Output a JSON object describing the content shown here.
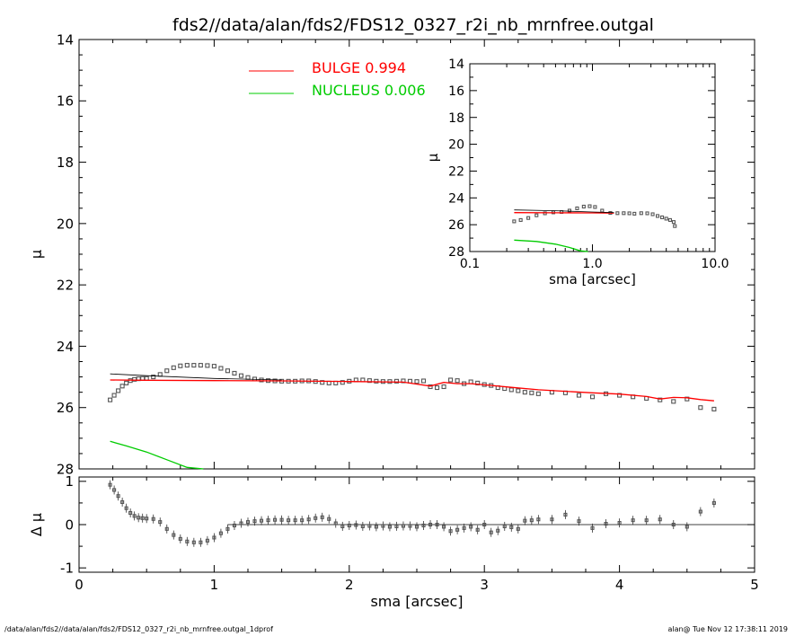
{
  "title": "fds2//data/alan/fds2/FDS12_0327_r2i_nb_mrnfree.outgal",
  "footer": {
    "left": "/data/alan/fds2//data/alan/fds2/FDS12_0327_r2i_nb_mrnfree.outgal_1dprof",
    "right": "alan@  Tue Nov 12 17:38:11 2019"
  },
  "colors": {
    "bulge": "#ff0000",
    "nucleus": "#00cc00",
    "data": "#555555",
    "total": "#000000"
  },
  "chart_data": [
    {
      "id": "main",
      "type": "scatter",
      "xlabel": "",
      "ylabel": "μ",
      "xlim": [
        0,
        5
      ],
      "ylim": [
        28,
        14
      ],
      "y_inverted": true,
      "yticks": [
        14,
        16,
        18,
        20,
        22,
        24,
        26,
        28
      ],
      "ytick_labels": [
        "14",
        "16",
        "18",
        "20",
        "22",
        "24",
        "26",
        "28"
      ],
      "legend": [
        {
          "label": "BULGE  0.994",
          "color": "#ff0000"
        },
        {
          "label": "NUCLEUS  0.006",
          "color": "#00cc00"
        }
      ],
      "series": [
        {
          "name": "data",
          "kind": "points",
          "x": [
            0.23,
            0.26,
            0.29,
            0.32,
            0.35,
            0.38,
            0.41,
            0.44,
            0.47,
            0.5,
            0.55,
            0.6,
            0.65,
            0.7,
            0.75,
            0.8,
            0.85,
            0.9,
            0.95,
            1.0,
            1.05,
            1.1,
            1.15,
            1.2,
            1.25,
            1.3,
            1.35,
            1.4,
            1.45,
            1.5,
            1.55,
            1.6,
            1.65,
            1.7,
            1.75,
            1.8,
            1.85,
            1.9,
            1.95,
            2.0,
            2.05,
            2.1,
            2.15,
            2.2,
            2.25,
            2.3,
            2.35,
            2.4,
            2.45,
            2.5,
            2.55,
            2.6,
            2.65,
            2.7,
            2.75,
            2.8,
            2.85,
            2.9,
            2.95,
            3.0,
            3.05,
            3.1,
            3.15,
            3.2,
            3.25,
            3.3,
            3.35,
            3.4,
            3.5,
            3.6,
            3.7,
            3.8,
            3.9,
            4.0,
            4.1,
            4.2,
            4.3,
            4.4,
            4.5,
            4.6,
            4.7
          ],
          "y": [
            25.75,
            25.6,
            25.45,
            25.3,
            25.2,
            25.12,
            25.08,
            25.06,
            25.05,
            25.05,
            25.0,
            24.92,
            24.8,
            24.7,
            24.64,
            24.62,
            24.62,
            24.62,
            24.63,
            24.65,
            24.72,
            24.8,
            24.88,
            24.96,
            25.02,
            25.07,
            25.1,
            25.12,
            25.13,
            25.14,
            25.14,
            25.14,
            25.13,
            25.13,
            25.15,
            25.18,
            25.2,
            25.2,
            25.18,
            25.14,
            25.1,
            25.1,
            25.12,
            25.14,
            25.15,
            25.15,
            25.14,
            25.13,
            25.14,
            25.15,
            25.13,
            25.32,
            25.35,
            25.32,
            25.1,
            25.12,
            25.22,
            25.16,
            25.2,
            25.25,
            25.28,
            25.35,
            25.38,
            25.42,
            25.45,
            25.5,
            25.52,
            25.55,
            25.5,
            25.52,
            25.6,
            25.65,
            25.55,
            25.6,
            25.65,
            25.7,
            25.75,
            25.8,
            25.72,
            26.0,
            26.05
          ]
        },
        {
          "name": "BULGE",
          "kind": "line",
          "x": [
            0.23,
            0.5,
            1.0,
            1.5,
            2.0,
            2.4,
            2.6,
            2.7,
            2.8,
            2.9,
            3.0,
            3.2,
            3.4,
            3.6,
            3.8,
            4.0,
            4.2,
            4.3,
            4.4,
            4.5,
            4.6,
            4.7
          ],
          "y": [
            25.1,
            25.11,
            25.12,
            25.13,
            25.15,
            25.17,
            25.3,
            25.18,
            25.22,
            25.22,
            25.26,
            25.34,
            25.42,
            25.47,
            25.52,
            25.56,
            25.64,
            25.72,
            25.67,
            25.68,
            25.74,
            25.78
          ]
        },
        {
          "name": "NUCLEUS",
          "kind": "line",
          "x": [
            0.23,
            0.35,
            0.5,
            0.65,
            0.8,
            0.92
          ],
          "y": [
            27.1,
            27.25,
            27.45,
            27.7,
            27.95,
            28.1
          ]
        },
        {
          "name": "total",
          "kind": "line",
          "x": [
            0.23,
            0.5,
            1.0,
            1.5
          ],
          "y": [
            24.9,
            24.96,
            25.05,
            25.1
          ]
        }
      ]
    },
    {
      "id": "residual",
      "type": "scatter",
      "xlabel": "sma [arcsec]",
      "ylabel": "Δ μ",
      "xlim": [
        0,
        5
      ],
      "ylim": [
        -1.1,
        1.1
      ],
      "xticks": [
        0,
        1,
        2,
        3,
        4,
        5
      ],
      "xtick_labels": [
        "0",
        "1",
        "2",
        "3",
        "4",
        "5"
      ],
      "yticks": [
        -1,
        0,
        1
      ],
      "ytick_labels": [
        "-1",
        "0",
        "1"
      ],
      "series": [
        {
          "name": "residuals",
          "kind": "points",
          "x": [
            0.23,
            0.26,
            0.29,
            0.32,
            0.35,
            0.38,
            0.41,
            0.44,
            0.47,
            0.5,
            0.55,
            0.6,
            0.65,
            0.7,
            0.75,
            0.8,
            0.85,
            0.9,
            0.95,
            1.0,
            1.05,
            1.1,
            1.15,
            1.2,
            1.25,
            1.3,
            1.35,
            1.4,
            1.45,
            1.5,
            1.55,
            1.6,
            1.65,
            1.7,
            1.75,
            1.8,
            1.85,
            1.9,
            1.95,
            2.0,
            2.05,
            2.1,
            2.15,
            2.2,
            2.25,
            2.3,
            2.35,
            2.4,
            2.45,
            2.5,
            2.55,
            2.6,
            2.65,
            2.7,
            2.75,
            2.8,
            2.85,
            2.9,
            2.95,
            3.0,
            3.05,
            3.1,
            3.15,
            3.2,
            3.25,
            3.3,
            3.35,
            3.4,
            3.5,
            3.6,
            3.7,
            3.8,
            3.9,
            4.0,
            4.1,
            4.2,
            4.3,
            4.4,
            4.5,
            4.6,
            4.7
          ],
          "y": [
            0.92,
            0.8,
            0.66,
            0.52,
            0.38,
            0.27,
            0.2,
            0.16,
            0.15,
            0.14,
            0.13,
            0.06,
            -0.1,
            -0.24,
            -0.33,
            -0.39,
            -0.41,
            -0.41,
            -0.37,
            -0.3,
            -0.2,
            -0.1,
            -0.02,
            0.03,
            0.06,
            0.08,
            0.09,
            0.1,
            0.11,
            0.11,
            0.1,
            0.1,
            0.1,
            0.12,
            0.15,
            0.17,
            0.13,
            0.03,
            -0.04,
            -0.02,
            -0.01,
            -0.04,
            -0.03,
            -0.05,
            -0.03,
            -0.05,
            -0.04,
            -0.03,
            -0.03,
            -0.05,
            -0.02,
            0.0,
            0.0,
            -0.05,
            -0.15,
            -0.12,
            -0.08,
            -0.05,
            -0.12,
            0.0,
            -0.18,
            -0.14,
            -0.04,
            -0.06,
            -0.1,
            0.09,
            0.1,
            0.12,
            0.12,
            0.23,
            0.08,
            -0.08,
            0.02,
            0.04,
            0.1,
            0.1,
            0.12,
            0.0,
            -0.05,
            0.3,
            0.5
          ]
        }
      ]
    },
    {
      "id": "inset",
      "type": "scatter",
      "xlabel": "sma [arcsec]",
      "ylabel": "μ",
      "xscale": "log",
      "xlim": [
        0.1,
        10.0
      ],
      "ylim": [
        28,
        14
      ],
      "y_inverted": true,
      "xticks": [
        0.1,
        1.0,
        10.0
      ],
      "xtick_labels": [
        "0.1",
        "1.0",
        "10.0"
      ],
      "yticks": [
        14,
        16,
        18,
        20,
        22,
        24,
        26,
        28
      ],
      "ytick_labels": [
        "14",
        "16",
        "18",
        "20",
        "22",
        "24",
        "26",
        "28"
      ],
      "series": [
        {
          "name": "data",
          "kind": "points",
          "x": [
            0.23,
            0.26,
            0.3,
            0.35,
            0.41,
            0.48,
            0.56,
            0.65,
            0.75,
            0.85,
            0.95,
            1.05,
            1.2,
            1.4,
            1.6,
            1.8,
            2.0,
            2.2,
            2.5,
            2.8,
            3.1,
            3.4,
            3.7,
            4.0,
            4.3,
            4.6,
            4.7
          ],
          "y": [
            25.75,
            25.65,
            25.5,
            25.3,
            25.15,
            25.08,
            25.05,
            24.95,
            24.78,
            24.65,
            24.62,
            24.68,
            24.95,
            25.12,
            25.14,
            25.14,
            25.15,
            25.18,
            25.14,
            25.15,
            25.22,
            25.35,
            25.45,
            25.55,
            25.65,
            25.8,
            26.1
          ]
        },
        {
          "name": "BULGE",
          "kind": "line",
          "x": [
            0.23,
            0.5,
            1.0,
            1.5
          ],
          "y": [
            25.1,
            25.11,
            25.12,
            25.13
          ]
        },
        {
          "name": "NUCLEUS",
          "kind": "line",
          "x": [
            0.23,
            0.35,
            0.5,
            0.65,
            0.8,
            0.92
          ],
          "y": [
            27.15,
            27.25,
            27.45,
            27.7,
            27.95,
            28.1
          ]
        },
        {
          "name": "total",
          "kind": "line",
          "x": [
            0.23,
            0.5,
            1.0,
            1.5
          ],
          "y": [
            24.9,
            24.96,
            25.05,
            25.1
          ]
        }
      ]
    }
  ]
}
